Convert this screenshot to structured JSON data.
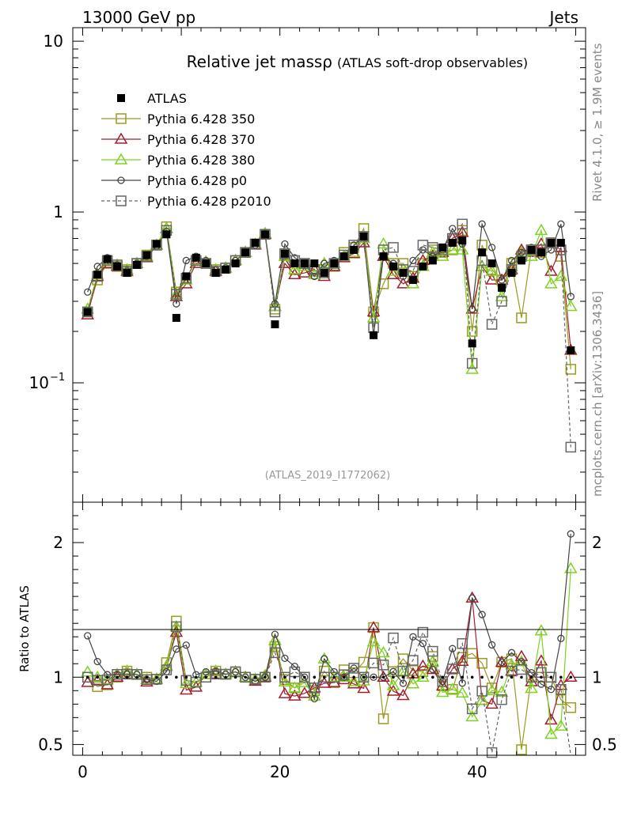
{
  "header": {
    "energy_label": "13000 GeV pp",
    "category_label": "Jets",
    "rivet_label": "Rivet 4.1.0, ≥ 1.9M events",
    "site_label": "mcplots.cern.ch [arXiv:1306.3436]"
  },
  "chart_data": [
    {
      "type": "scatter",
      "title": "Relative jet massρ",
      "subtitle": "(ATLAS soft-drop observables)",
      "analysis_label": "(ATLAS_2019_I1772062)",
      "yscale": "log",
      "xlim": [
        -1,
        51
      ],
      "ylim": [
        0.02,
        12
      ],
      "yticks": [
        {
          "value": 10,
          "label": "10"
        },
        {
          "value": 1,
          "label": "1"
        },
        {
          "value": 0.1,
          "label": "10",
          "exp": "−1"
        }
      ],
      "series": [
        {
          "name": "ATLAS",
          "color": "#000000",
          "marker": "filled-square",
          "x": [
            0.5,
            1.5,
            2.5,
            3.5,
            4.5,
            5.5,
            6.5,
            7.5,
            8.5,
            9.5,
            10.5,
            11.5,
            12.5,
            13.5,
            14.5,
            15.5,
            16.5,
            17.5,
            18.5,
            19.5,
            20.5,
            21.5,
            22.5,
            23.5,
            24.5,
            25.5,
            26.5,
            27.5,
            28.5,
            29.5,
            30.5,
            31.5,
            32.5,
            33.5,
            34.5,
            35.5,
            36.5,
            37.5,
            38.5,
            39.5,
            40.5,
            41.5,
            42.5,
            43.5,
            44.5,
            45.5,
            46.5,
            47.5,
            48.5,
            49.5
          ],
          "values": [
            0.26,
            0.43,
            0.53,
            0.48,
            0.44,
            0.49,
            0.56,
            0.65,
            0.74,
            0.24,
            0.42,
            0.54,
            0.5,
            0.44,
            0.46,
            0.5,
            0.58,
            0.66,
            0.74,
            0.22,
            0.57,
            0.5,
            0.5,
            0.5,
            0.44,
            0.5,
            0.55,
            0.6,
            0.72,
            0.19,
            0.55,
            0.48,
            0.44,
            0.4,
            0.48,
            0.52,
            0.62,
            0.66,
            0.68,
            0.17,
            0.58,
            0.5,
            0.36,
            0.44,
            0.52,
            0.6,
            0.58,
            0.66,
            0.66,
            0.155
          ]
        },
        {
          "name": "Pythia 6.428 350",
          "color": "#9a9a24",
          "marker": "open-square",
          "line": "solid",
          "x": [
            0.5,
            1.5,
            2.5,
            3.5,
            4.5,
            5.5,
            6.5,
            7.5,
            8.5,
            9.5,
            10.5,
            11.5,
            12.5,
            13.5,
            14.5,
            15.5,
            16.5,
            17.5,
            18.5,
            19.5,
            20.5,
            21.5,
            22.5,
            23.5,
            24.5,
            25.5,
            26.5,
            27.5,
            28.5,
            29.5,
            30.5,
            31.5,
            32.5,
            33.5,
            34.5,
            35.5,
            36.5,
            37.5,
            38.5,
            39.5,
            40.5,
            41.5,
            42.5,
            43.5,
            44.5,
            45.5,
            46.5,
            47.5,
            48.5,
            49.5
          ],
          "values": [
            0.26,
            0.4,
            0.5,
            0.48,
            0.46,
            0.5,
            0.56,
            0.64,
            0.82,
            0.34,
            0.41,
            0.52,
            0.5,
            0.46,
            0.47,
            0.52,
            0.58,
            0.65,
            0.74,
            0.27,
            0.56,
            0.46,
            0.5,
            0.45,
            0.46,
            0.48,
            0.58,
            0.62,
            0.8,
            0.26,
            0.38,
            0.5,
            0.5,
            0.42,
            0.5,
            0.6,
            0.58,
            0.6,
            0.78,
            0.2,
            0.64,
            0.46,
            0.4,
            0.5,
            0.24,
            0.6,
            0.58,
            0.66,
            0.55,
            0.12
          ]
        },
        {
          "name": "Pythia 6.428 370",
          "color": "#a31f2e",
          "marker": "open-triangle",
          "line": "solid",
          "x": [
            0.5,
            1.5,
            2.5,
            3.5,
            4.5,
            5.5,
            6.5,
            7.5,
            8.5,
            9.5,
            10.5,
            11.5,
            12.5,
            13.5,
            14.5,
            15.5,
            16.5,
            17.5,
            18.5,
            19.5,
            20.5,
            21.5,
            22.5,
            23.5,
            24.5,
            25.5,
            26.5,
            27.5,
            28.5,
            29.5,
            30.5,
            31.5,
            32.5,
            33.5,
            34.5,
            35.5,
            36.5,
            37.5,
            38.5,
            39.5,
            40.5,
            41.5,
            42.5,
            43.5,
            44.5,
            45.5,
            46.5,
            47.5,
            48.5,
            49.5
          ],
          "values": [
            0.25,
            0.42,
            0.5,
            0.48,
            0.45,
            0.5,
            0.54,
            0.64,
            0.8,
            0.32,
            0.38,
            0.5,
            0.51,
            0.45,
            0.47,
            0.52,
            0.58,
            0.64,
            0.74,
            0.28,
            0.5,
            0.43,
            0.44,
            0.46,
            0.42,
            0.48,
            0.54,
            0.57,
            0.66,
            0.26,
            0.55,
            0.43,
            0.38,
            0.41,
            0.52,
            0.55,
            0.58,
            0.7,
            0.76,
            0.27,
            0.48,
            0.4,
            0.4,
            0.46,
            0.6,
            0.58,
            0.65,
            0.45,
            0.62,
            0.155
          ]
        },
        {
          "name": "Pythia 6.428 380",
          "color": "#7ed321",
          "marker": "open-triangle",
          "line": "solid",
          "x": [
            0.5,
            1.5,
            2.5,
            3.5,
            4.5,
            5.5,
            6.5,
            7.5,
            8.5,
            9.5,
            10.5,
            11.5,
            12.5,
            13.5,
            14.5,
            15.5,
            16.5,
            17.5,
            18.5,
            19.5,
            20.5,
            21.5,
            22.5,
            23.5,
            24.5,
            25.5,
            26.5,
            27.5,
            28.5,
            29.5,
            30.5,
            31.5,
            32.5,
            33.5,
            34.5,
            35.5,
            36.5,
            37.5,
            38.5,
            39.5,
            40.5,
            41.5,
            42.5,
            43.5,
            44.5,
            45.5,
            46.5,
            47.5,
            48.5,
            49.5
          ],
          "values": [
            0.27,
            0.43,
            0.52,
            0.49,
            0.46,
            0.5,
            0.55,
            0.64,
            0.8,
            0.33,
            0.4,
            0.52,
            0.51,
            0.46,
            0.47,
            0.52,
            0.58,
            0.65,
            0.75,
            0.28,
            0.55,
            0.46,
            0.48,
            0.43,
            0.5,
            0.5,
            0.55,
            0.58,
            0.7,
            0.24,
            0.65,
            0.45,
            0.46,
            0.38,
            0.48,
            0.58,
            0.55,
            0.6,
            0.6,
            0.12,
            0.48,
            0.45,
            0.32,
            0.48,
            0.58,
            0.55,
            0.78,
            0.38,
            0.42,
            0.28
          ]
        },
        {
          "name": "Pythia 6.428 p0",
          "color": "#444444",
          "marker": "open-circle",
          "line": "solid",
          "x": [
            0.5,
            1.5,
            2.5,
            3.5,
            4.5,
            5.5,
            6.5,
            7.5,
            8.5,
            9.5,
            10.5,
            11.5,
            12.5,
            13.5,
            14.5,
            15.5,
            16.5,
            17.5,
            18.5,
            19.5,
            20.5,
            21.5,
            22.5,
            23.5,
            24.5,
            25.5,
            26.5,
            27.5,
            28.5,
            29.5,
            30.5,
            31.5,
            32.5,
            33.5,
            34.5,
            35.5,
            36.5,
            37.5,
            38.5,
            39.5,
            40.5,
            41.5,
            42.5,
            43.5,
            44.5,
            45.5,
            46.5,
            47.5,
            48.5,
            49.5
          ],
          "values": [
            0.34,
            0.48,
            0.54,
            0.49,
            0.45,
            0.5,
            0.55,
            0.63,
            0.77,
            0.29,
            0.52,
            0.55,
            0.52,
            0.46,
            0.47,
            0.52,
            0.58,
            0.64,
            0.74,
            0.29,
            0.65,
            0.54,
            0.5,
            0.42,
            0.5,
            0.52,
            0.55,
            0.64,
            0.72,
            0.19,
            0.55,
            0.5,
            0.42,
            0.52,
            0.6,
            0.55,
            0.6,
            0.8,
            0.65,
            0.27,
            0.85,
            0.62,
            0.4,
            0.52,
            0.58,
            0.62,
            0.55,
            0.6,
            0.85,
            0.32
          ]
        },
        {
          "name": "Pythia 6.428 p2010",
          "color": "#666666",
          "marker": "open-square",
          "line": "dashed",
          "x": [
            0.5,
            1.5,
            2.5,
            3.5,
            4.5,
            5.5,
            6.5,
            7.5,
            8.5,
            9.5,
            10.5,
            11.5,
            12.5,
            13.5,
            14.5,
            15.5,
            16.5,
            17.5,
            18.5,
            19.5,
            20.5,
            21.5,
            22.5,
            23.5,
            24.5,
            25.5,
            26.5,
            27.5,
            28.5,
            29.5,
            30.5,
            31.5,
            32.5,
            33.5,
            34.5,
            35.5,
            36.5,
            37.5,
            38.5,
            39.5,
            40.5,
            41.5,
            42.5,
            43.5,
            44.5,
            45.5,
            46.5,
            47.5,
            48.5,
            49.5
          ],
          "values": [
            0.26,
            0.42,
            0.52,
            0.49,
            0.45,
            0.5,
            0.55,
            0.64,
            0.78,
            0.33,
            0.41,
            0.52,
            0.5,
            0.45,
            0.47,
            0.52,
            0.58,
            0.65,
            0.74,
            0.26,
            0.57,
            0.52,
            0.5,
            0.46,
            0.44,
            0.5,
            0.56,
            0.64,
            0.72,
            0.21,
            0.6,
            0.62,
            0.46,
            0.45,
            0.64,
            0.62,
            0.6,
            0.7,
            0.85,
            0.13,
            0.52,
            0.22,
            0.3,
            0.46,
            0.55,
            0.6,
            0.6,
            0.66,
            0.6,
            0.042
          ]
        }
      ]
    },
    {
      "type": "scatter",
      "ylabel": "Ratio to ATLAS",
      "xlim": [
        -1,
        51
      ],
      "ylim": [
        0.42,
        2.3
      ],
      "xticks": [
        0,
        20,
        40
      ],
      "yticks": [
        {
          "value": 0.5,
          "label": "0.5"
        },
        {
          "value": 1,
          "label": "1"
        },
        {
          "value": 2,
          "label": "2"
        }
      ]
    }
  ]
}
